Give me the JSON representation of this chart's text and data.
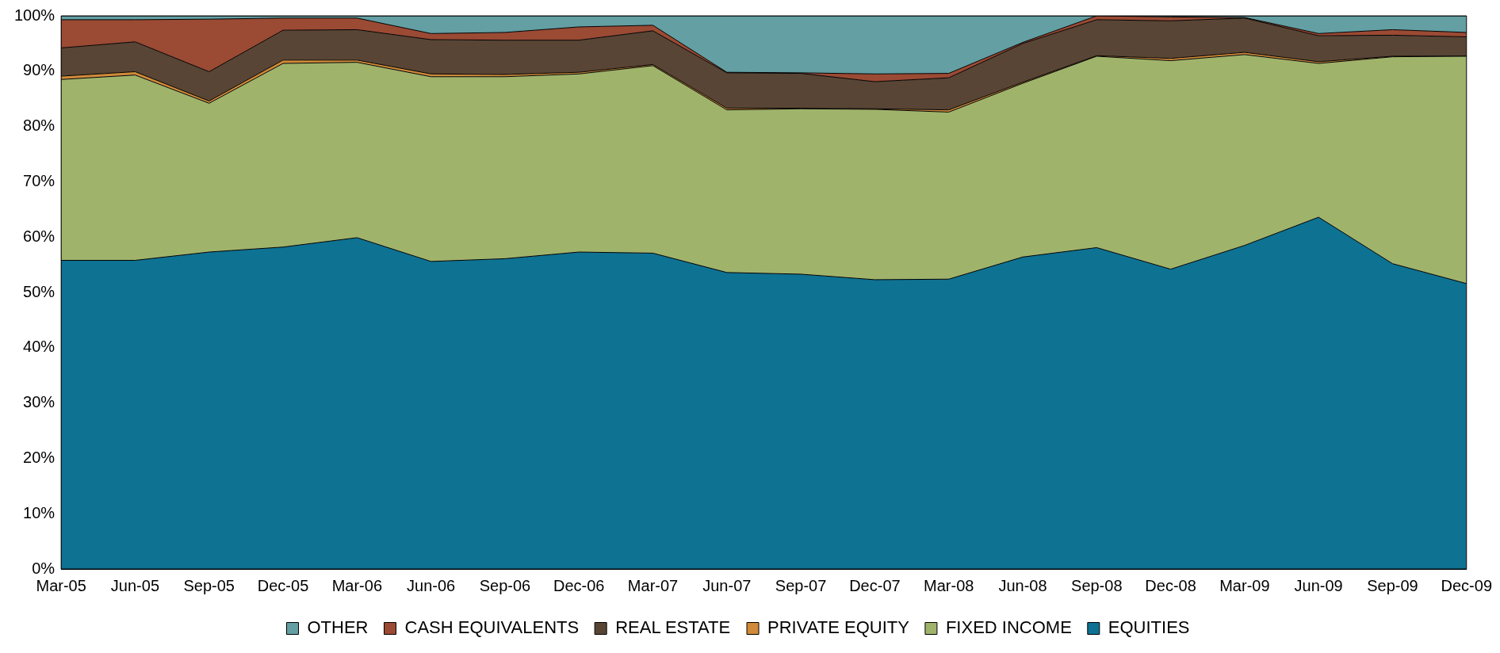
{
  "chart_data": {
    "type": "area",
    "stacked": true,
    "legend": "bottom",
    "categories": [
      "Mar-05",
      "Jun-05",
      "Sep-05",
      "Dec-05",
      "Mar-06",
      "Jun-06",
      "Sep-06",
      "Dec-06",
      "Mar-07",
      "Jun-07",
      "Sep-07",
      "Dec-07",
      "Mar-08",
      "Jun-08",
      "Sep-08",
      "Dec-08",
      "Mar-09",
      "Jun-09",
      "Sep-09",
      "Dec-09"
    ],
    "ylim": [
      0,
      100
    ],
    "yticks": [
      {
        "value": 0,
        "label": "0%"
      },
      {
        "value": 10,
        "label": "10%"
      },
      {
        "value": 20,
        "label": "20%"
      },
      {
        "value": 30,
        "label": "30%"
      },
      {
        "value": 40,
        "label": "40%"
      },
      {
        "value": 50,
        "label": "50%"
      },
      {
        "value": 60,
        "label": "60%"
      },
      {
        "value": 70,
        "label": "70%"
      },
      {
        "value": 80,
        "label": "80%"
      },
      {
        "value": 90,
        "label": "90%"
      },
      {
        "value": 100,
        "label": "100%"
      }
    ],
    "series": [
      {
        "name": "EQUITIES",
        "color": "#0e7293",
        "values": [
          55.8,
          55.8,
          57.3,
          58.2,
          59.9,
          55.6,
          56.1,
          57.3,
          57.1,
          53.6,
          53.3,
          52.3,
          52.4,
          56.4,
          58.1,
          54.2,
          58.5,
          63.6,
          55.2,
          51.6
        ]
      },
      {
        "name": "FIXED INCOME",
        "color": "#a0b36b",
        "values": [
          32.7,
          33.5,
          26.9,
          33.2,
          31.7,
          33.4,
          32.9,
          32.2,
          33.9,
          29.4,
          29.9,
          30.8,
          30.2,
          31.4,
          34.6,
          37.7,
          34.5,
          27.8,
          37.4,
          41.1
        ]
      },
      {
        "name": "PRIVATE EQUITY",
        "color": "#d08a3a",
        "values": [
          0.6,
          0.6,
          0.4,
          0.6,
          0.4,
          0.5,
          0.4,
          0.3,
          0.2,
          0.3,
          0.1,
          0.1,
          0.4,
          0.2,
          0.1,
          0.4,
          0.4,
          0.3,
          0.1,
          0
        ]
      },
      {
        "name": "REAL ESTATE",
        "color": "#594535",
        "values": [
          5.1,
          5.4,
          5.3,
          5.4,
          5.5,
          6.2,
          6.2,
          5.8,
          6.1,
          6.4,
          6.3,
          4.9,
          5.8,
          7.0,
          6.5,
          6.8,
          6.2,
          4.7,
          3.8,
          3.5
        ]
      },
      {
        "name": "CASH EQUIVALENTS",
        "color": "#9b4a34",
        "values": [
          5.1,
          4.0,
          9.5,
          2.2,
          2.1,
          1.1,
          1.4,
          2.4,
          1.0,
          0.1,
          0.1,
          1.4,
          0.8,
          0.2,
          0.7,
          0.7,
          0.1,
          0.4,
          1.0,
          0.8
        ]
      },
      {
        "name": "OTHER",
        "color": "#639fa3",
        "values": [
          0.7,
          0.7,
          0.6,
          0.4,
          0.4,
          3.2,
          3.0,
          2.0,
          1.7,
          10.2,
          10.3,
          10.5,
          10.4,
          4.8,
          0,
          0.2,
          0.3,
          3.2,
          2.5,
          3.0
        ]
      }
    ]
  }
}
